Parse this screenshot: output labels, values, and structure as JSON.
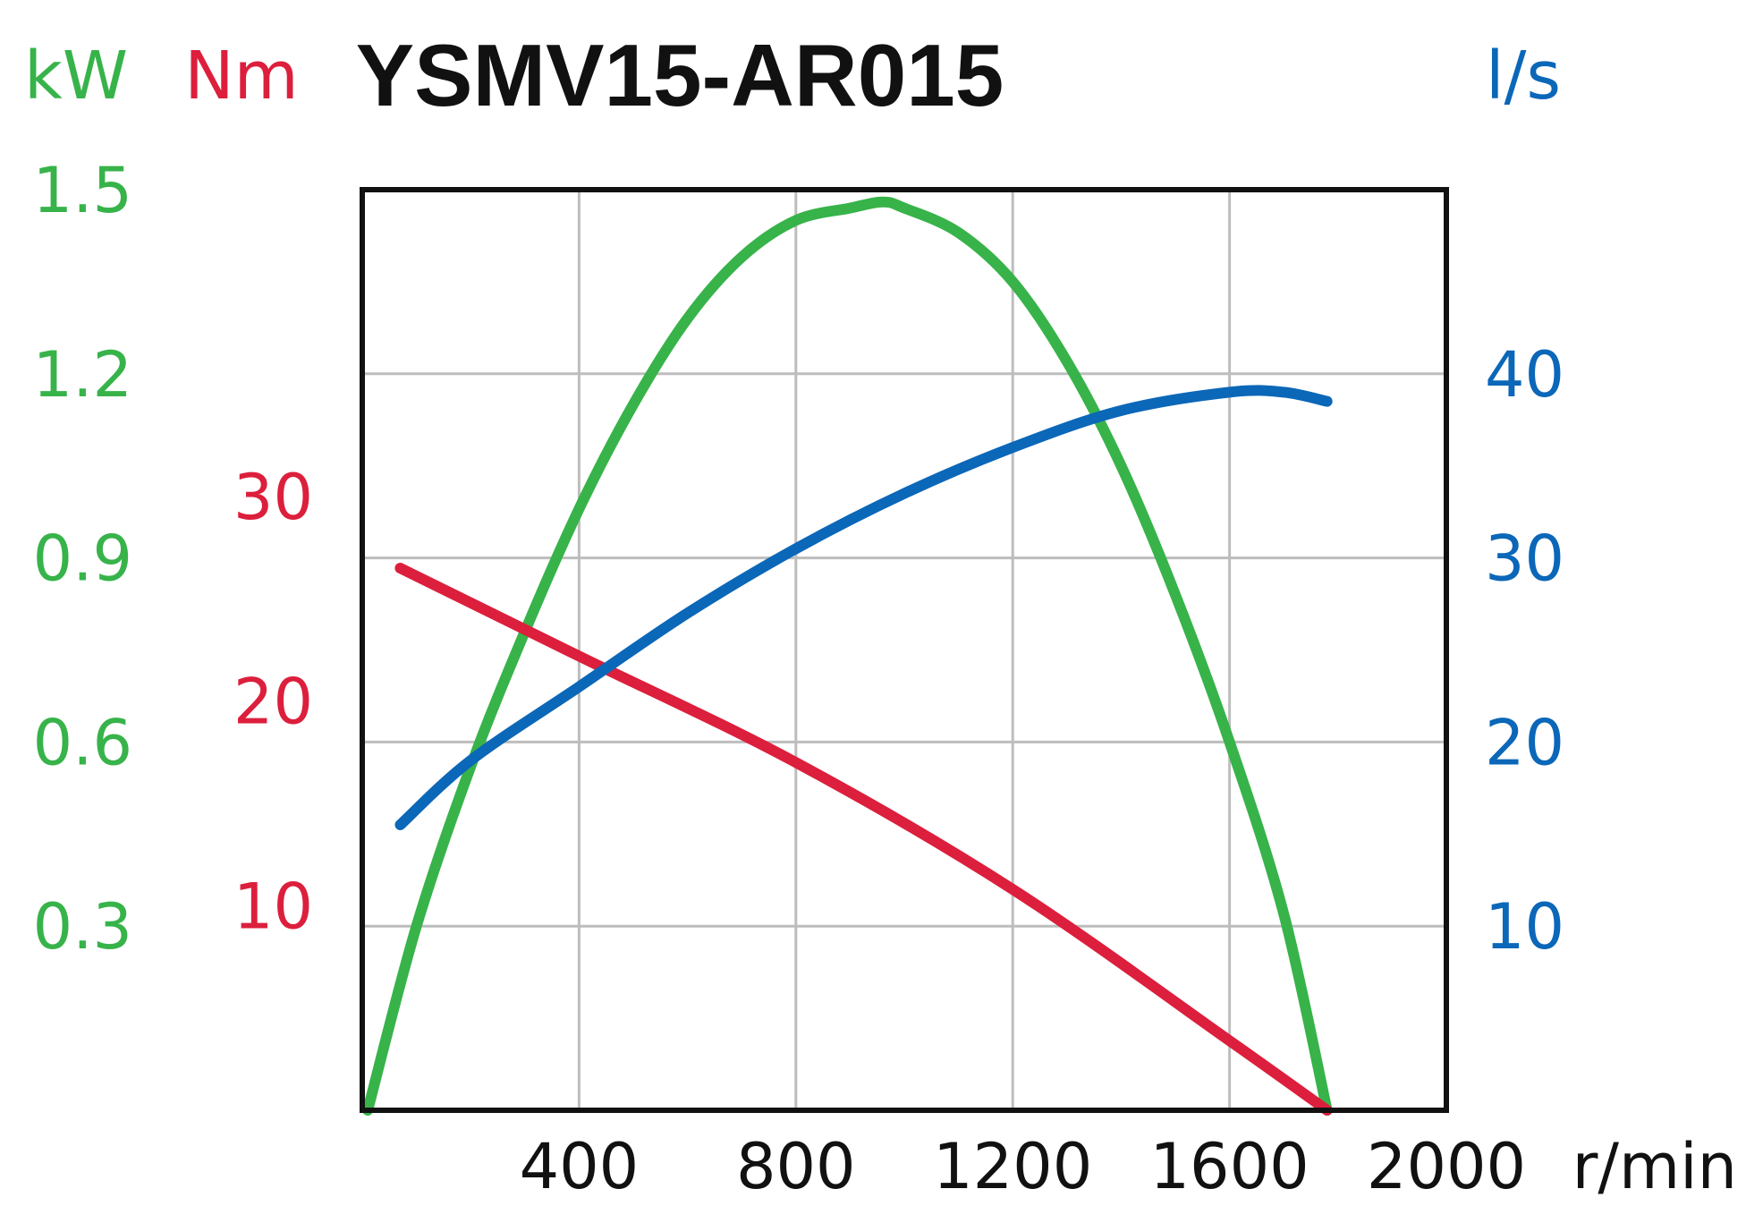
{
  "chart_data": {
    "type": "line",
    "title": "YSMV15-AR015",
    "xlabel": "r/min",
    "xlim": [
      0,
      2000
    ],
    "x_ticks": [
      400,
      800,
      1200,
      1600,
      2000
    ],
    "grid": true,
    "axes": {
      "power": {
        "unit": "kW",
        "color": "#37b34a",
        "ylim": [
          0,
          1.5
        ],
        "ticks": [
          "0.3",
          "0.6",
          "0.9",
          "1.2",
          "1.5"
        ]
      },
      "torque": {
        "unit": "Nm",
        "color": "#dc1f3c",
        "ylim": [
          0,
          45
        ],
        "ticks": [
          "10",
          "20",
          "30"
        ]
      },
      "flow": {
        "unit": "l/s",
        "color": "#0b67b8",
        "ylim": [
          0,
          50
        ],
        "ticks": [
          "10",
          "20",
          "30",
          "40"
        ]
      }
    },
    "series": [
      {
        "axis": "power",
        "color": "#37b34a",
        "points": [
          [
            10,
            0.0
          ],
          [
            100,
            0.3
          ],
          [
            200,
            0.56
          ],
          [
            300,
            0.78
          ],
          [
            400,
            0.98
          ],
          [
            500,
            1.15
          ],
          [
            600,
            1.29
          ],
          [
            700,
            1.39
          ],
          [
            800,
            1.45
          ],
          [
            900,
            1.47
          ],
          [
            960,
            1.48
          ],
          [
            1000,
            1.47
          ],
          [
            1100,
            1.43
          ],
          [
            1200,
            1.35
          ],
          [
            1300,
            1.22
          ],
          [
            1400,
            1.05
          ],
          [
            1500,
            0.84
          ],
          [
            1600,
            0.6
          ],
          [
            1700,
            0.32
          ],
          [
            1780,
            0.0
          ]
        ]
      },
      {
        "axis": "torque",
        "color": "#dc1f3c",
        "points": [
          [
            70,
            26.5
          ],
          [
            400,
            22.2
          ],
          [
            800,
            17.0
          ],
          [
            1200,
            10.8
          ],
          [
            1600,
            3.4
          ],
          [
            1780,
            0.0
          ]
        ]
      },
      {
        "axis": "flow",
        "color": "#0b67b8",
        "points": [
          [
            70,
            15.5
          ],
          [
            200,
            19.0
          ],
          [
            400,
            23.0
          ],
          [
            600,
            27.0
          ],
          [
            800,
            30.5
          ],
          [
            1000,
            33.5
          ],
          [
            1200,
            36.0
          ],
          [
            1400,
            38.0
          ],
          [
            1600,
            39.0
          ],
          [
            1700,
            39.0
          ],
          [
            1780,
            38.5
          ]
        ]
      }
    ]
  }
}
